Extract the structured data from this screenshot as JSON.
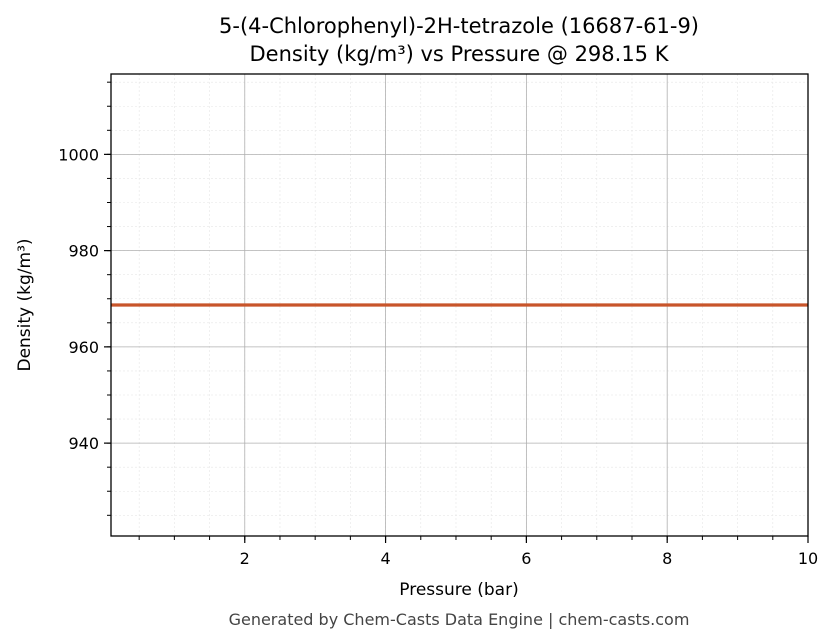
{
  "chart_data": {
    "type": "line",
    "title": "5-(4-Chlorophenyl)-2H-tetrazole (16687-61-9)",
    "subtitle": "Density (kg/m³) vs Pressure @ 298.15 K",
    "xlabel": "Pressure (bar)",
    "ylabel": "Density (kg/m³)",
    "xlim": [
      0.1,
      10
    ],
    "ylim": [
      920.7,
      1016.7
    ],
    "xticks": [
      2,
      4,
      6,
      8,
      10
    ],
    "xtick_labels": [
      "2",
      "4",
      "6",
      "8",
      "10"
    ],
    "yticks": [
      940,
      960,
      980,
      1000
    ],
    "ytick_labels": [
      "940",
      "960",
      "980",
      "1000"
    ],
    "grid": true,
    "series": [
      {
        "color": "#c8552a",
        "x": [
          0.1,
          10
        ],
        "y": [
          968.7,
          968.7
        ]
      }
    ]
  },
  "footer": "Generated by Chem-Casts Data Engine | chem-casts.com"
}
